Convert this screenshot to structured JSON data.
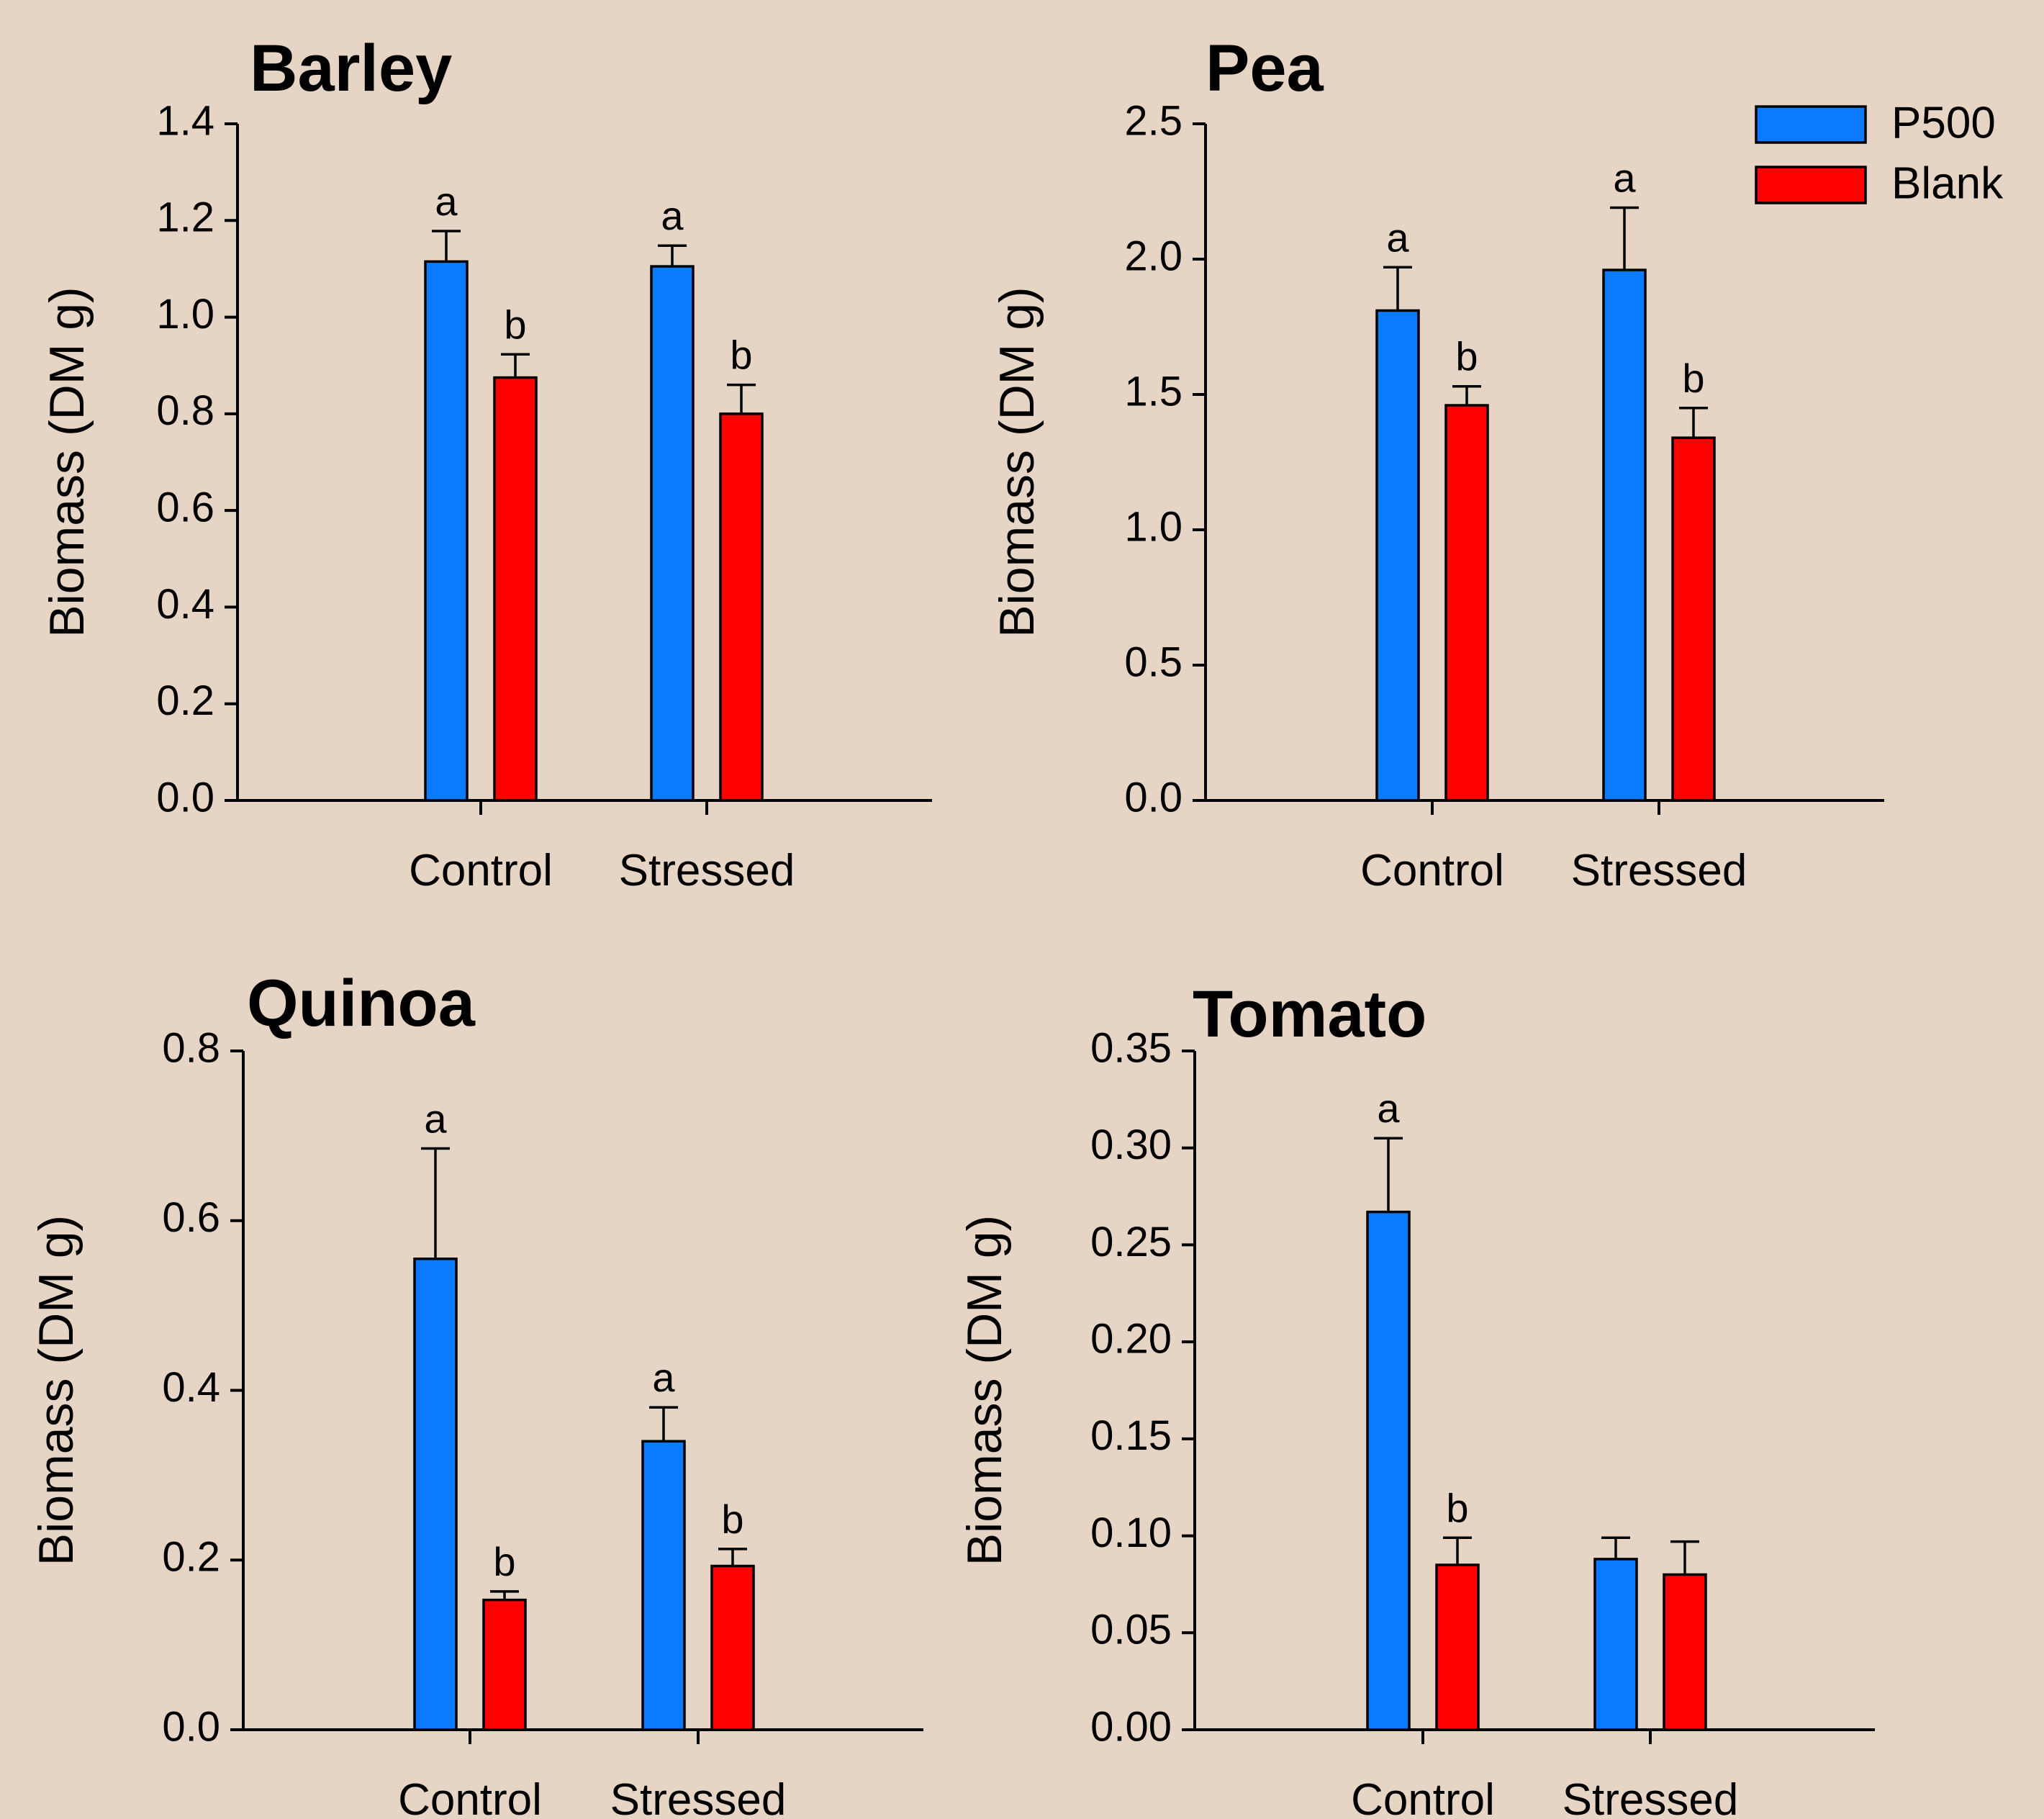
{
  "chart_data": [
    {
      "type": "bar",
      "title": "Barley",
      "ylabel": "Biomass (DM g)",
      "ylim": [
        0,
        1.4
      ],
      "yticks": [
        "0.0",
        "0.2",
        "0.4",
        "0.6",
        "0.8",
        "1.0",
        "1.2",
        "1.4"
      ],
      "categories": [
        "Control",
        "Stressed"
      ],
      "series": [
        {
          "name": "P500",
          "color": "#0a7bff",
          "values": [
            1.115,
            1.105
          ],
          "errors": [
            0.063,
            0.043
          ],
          "significance": [
            "a",
            "a"
          ]
        },
        {
          "name": "Blank",
          "color": "#ff0000",
          "values": [
            0.875,
            0.8
          ],
          "errors": [
            0.048,
            0.06
          ],
          "significance": [
            "b",
            "b"
          ]
        }
      ]
    },
    {
      "type": "bar",
      "title": "Pea",
      "ylabel": "Biomass (DM g)",
      "ylim": [
        0,
        2.5
      ],
      "yticks": [
        "0.0",
        "0.5",
        "1.0",
        "1.5",
        "2.0",
        "2.5"
      ],
      "categories": [
        "Control",
        "Stressed"
      ],
      "series": [
        {
          "name": "P500",
          "color": "#0a7bff",
          "values": [
            1.81,
            1.96
          ],
          "errors": [
            0.16,
            0.23
          ],
          "significance": [
            "a",
            "a"
          ]
        },
        {
          "name": "Blank",
          "color": "#ff0000",
          "values": [
            1.46,
            1.34
          ],
          "errors": [
            0.07,
            0.11
          ],
          "significance": [
            "b",
            "b"
          ]
        }
      ]
    },
    {
      "type": "bar",
      "title": "Quinoa",
      "ylabel": "Biomass (DM g)",
      "ylim": [
        0,
        0.8
      ],
      "yticks": [
        "0.0",
        "0.2",
        "0.4",
        "0.6",
        "0.8"
      ],
      "categories": [
        "Control",
        "Stressed"
      ],
      "series": [
        {
          "name": "P500",
          "color": "#0a7bff",
          "values": [
            0.555,
            0.34
          ],
          "errors": [
            0.13,
            0.04
          ],
          "significance": [
            "a",
            "a"
          ]
        },
        {
          "name": "Blank",
          "color": "#ff0000",
          "values": [
            0.153,
            0.193
          ],
          "errors": [
            0.01,
            0.02
          ],
          "significance": [
            "b",
            "b"
          ]
        }
      ]
    },
    {
      "type": "bar",
      "title": "Tomato",
      "ylabel": "Biomass (DM g)",
      "ylim": [
        0,
        0.35
      ],
      "yticks": [
        "0.00",
        "0.05",
        "0.10",
        "0.15",
        "0.20",
        "0.25",
        "0.30",
        "0.35"
      ],
      "categories": [
        "Control",
        "Stressed"
      ],
      "series": [
        {
          "name": "P500",
          "color": "#0a7bff",
          "values": [
            0.267,
            0.088
          ],
          "errors": [
            0.038,
            0.011
          ],
          "significance": [
            "a",
            ""
          ]
        },
        {
          "name": "Blank",
          "color": "#ff0000",
          "values": [
            0.085,
            0.08
          ],
          "errors": [
            0.014,
            0.017
          ],
          "significance": [
            "b",
            ""
          ]
        }
      ]
    }
  ],
  "legend": {
    "position": "top-right",
    "items": [
      {
        "label": "P500",
        "color": "#0a7bff"
      },
      {
        "label": "Blank",
        "color": "#ff0000"
      }
    ]
  }
}
